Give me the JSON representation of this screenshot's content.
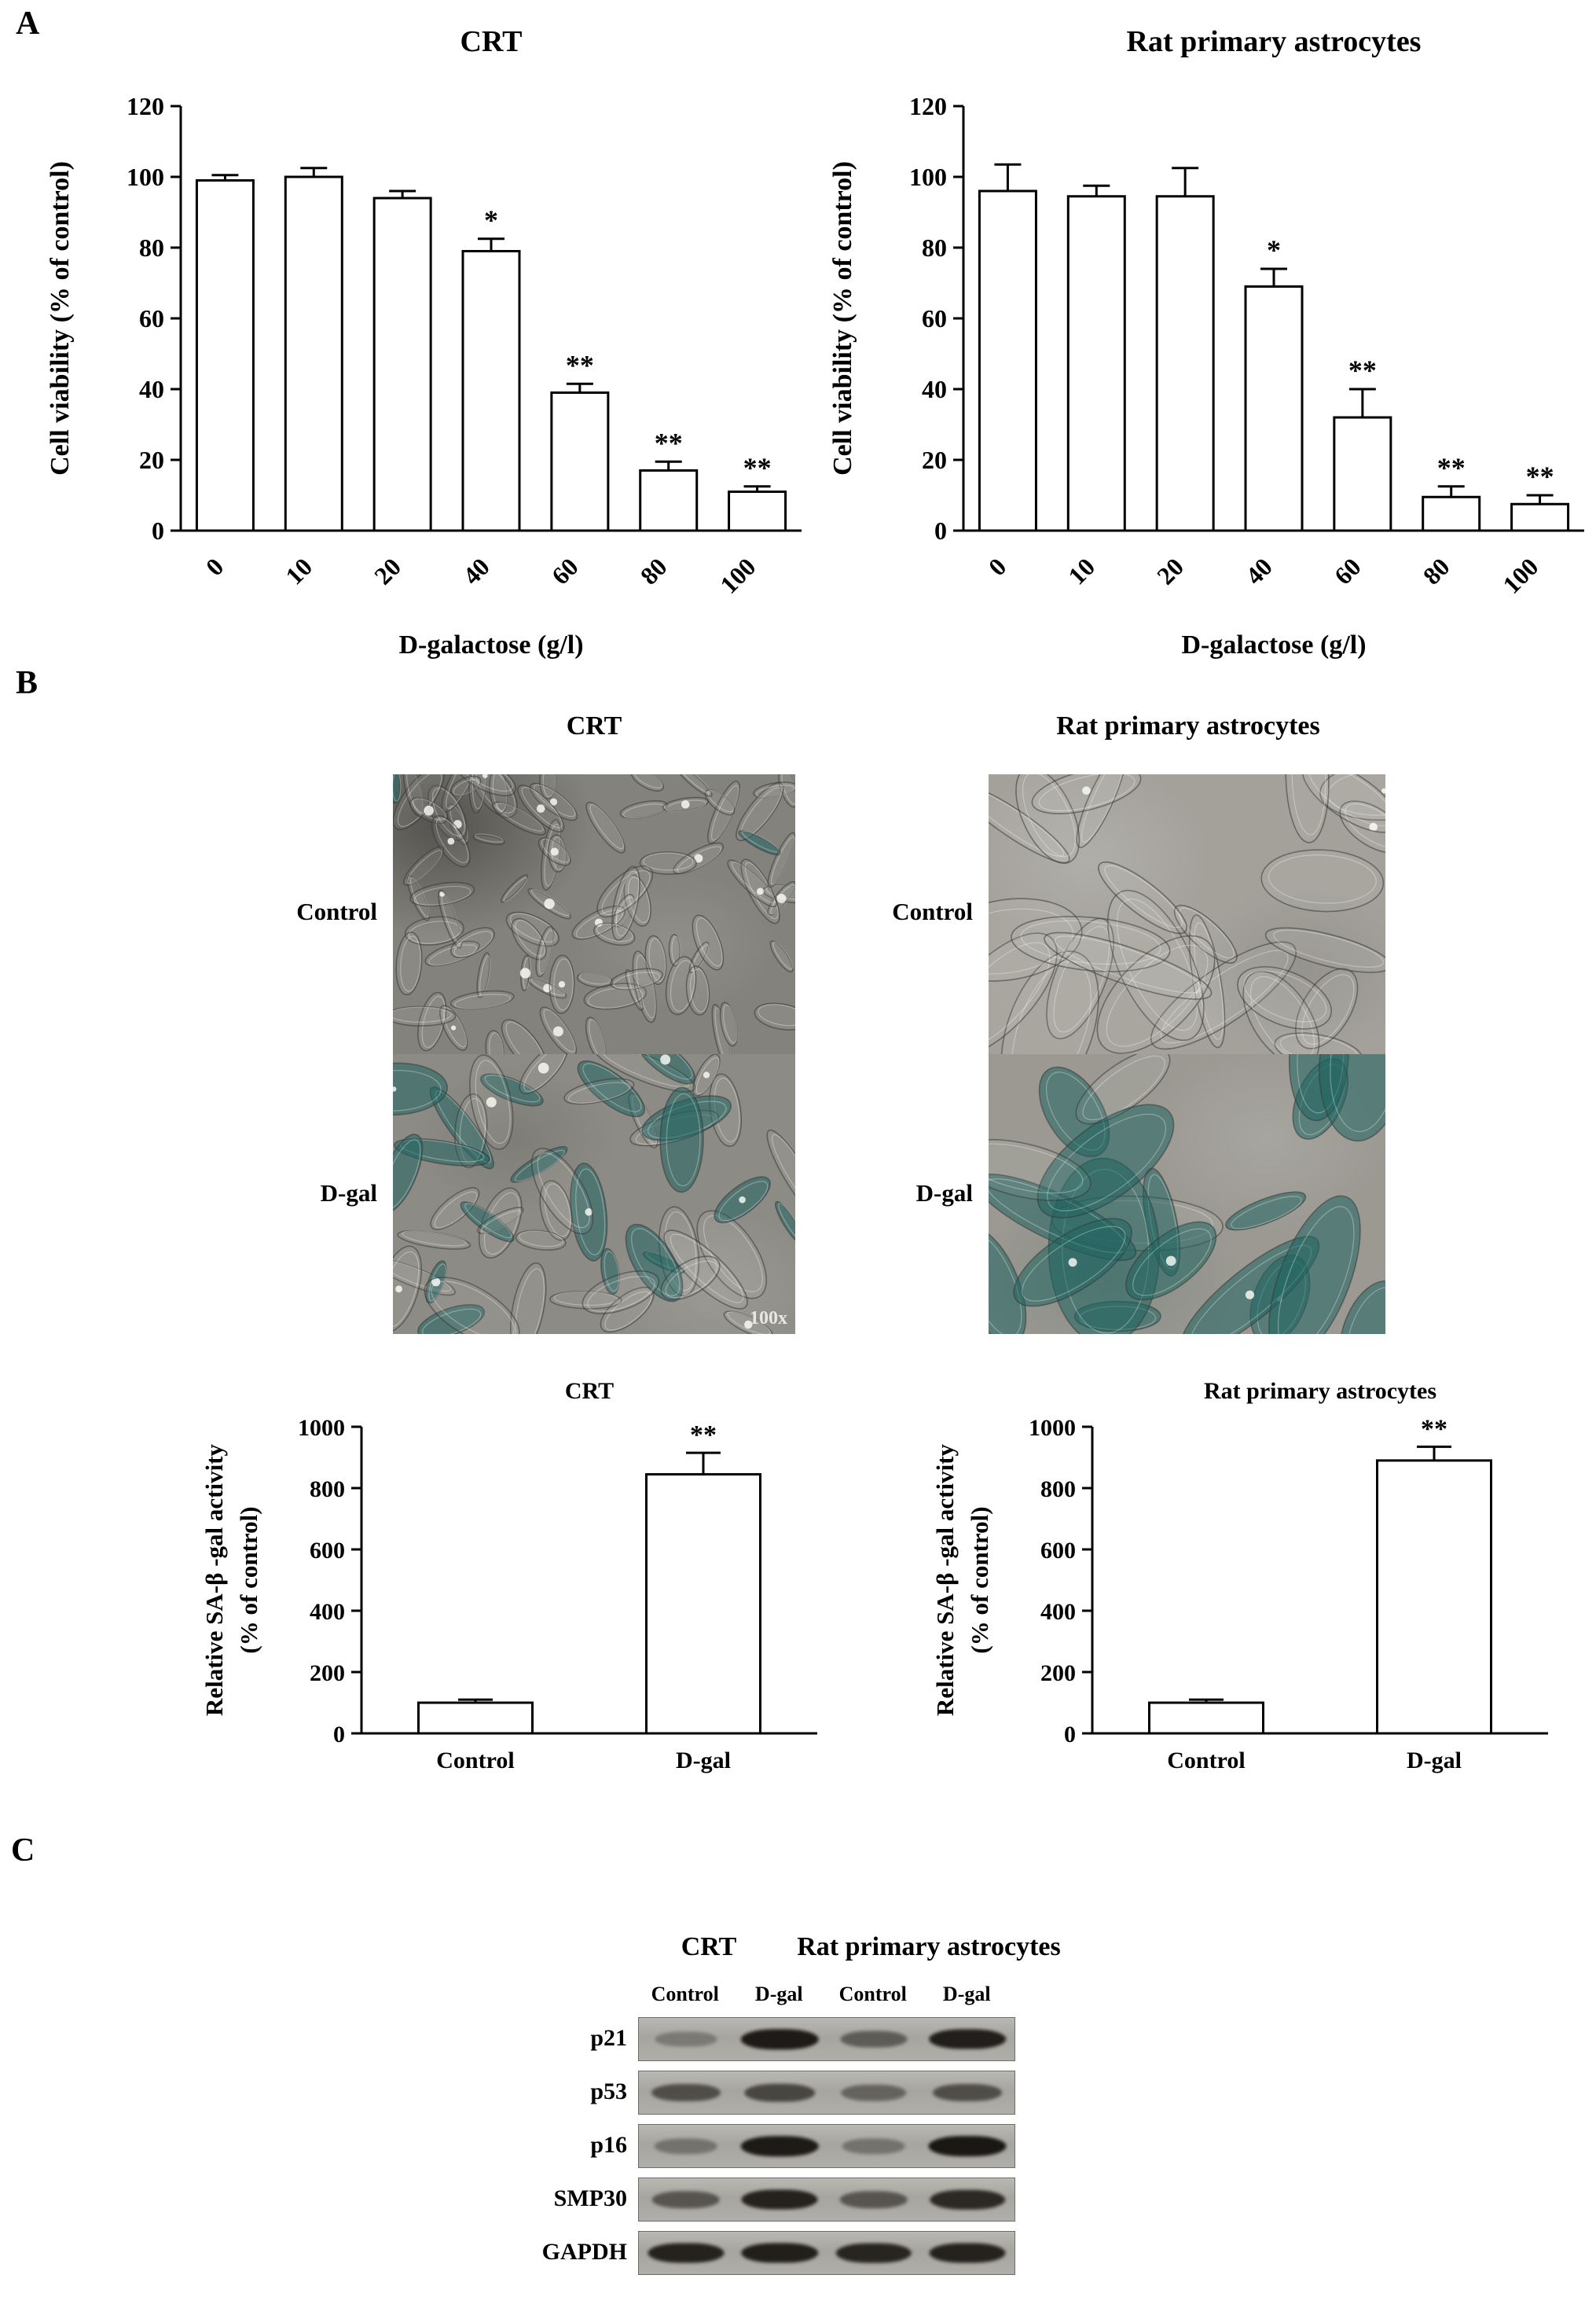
{
  "panel_a": {
    "label": "A"
  },
  "panel_b": {
    "label": "B",
    "column_headers": [
      "CRT",
      "Rat primary astrocytes"
    ],
    "image_rows": [
      "Control",
      "D-gal"
    ],
    "magnification": "100x"
  },
  "panel_c": {
    "label": "C",
    "group_headers": [
      "CRT",
      "Rat primary astrocytes"
    ],
    "lane_headers": [
      "Control",
      "D-gal",
      "Control",
      "D-gal"
    ],
    "proteins": [
      {
        "name": "p21",
        "bands": [
          0.3,
          0.95,
          0.5,
          0.92
        ]
      },
      {
        "name": "p53",
        "bands": [
          0.6,
          0.65,
          0.45,
          0.6
        ]
      },
      {
        "name": "p16",
        "bands": [
          0.35,
          0.95,
          0.35,
          0.97
        ]
      },
      {
        "name": "SMP30",
        "bands": [
          0.55,
          0.9,
          0.55,
          0.85
        ]
      },
      {
        "name": "GAPDH",
        "bands": [
          0.9,
          0.92,
          0.88,
          0.9
        ]
      }
    ]
  },
  "chart_data": [
    {
      "id": "crt_viability",
      "type": "bar",
      "title": "CRT",
      "xlabel": "D-galactose (g/l)",
      "ylabel": "Cell viability (% of control)",
      "categories": [
        "0",
        "10",
        "20",
        "40",
        "60",
        "80",
        "100"
      ],
      "values": [
        99,
        100,
        94,
        79,
        39,
        17,
        11
      ],
      "errors": [
        1.5,
        2.5,
        2,
        3.5,
        2.5,
        2.5,
        1.5
      ],
      "significance": [
        "",
        "",
        "",
        "*",
        "**",
        "**",
        "**"
      ],
      "ylim": [
        0,
        120
      ],
      "ytick_step": 20,
      "bar_fill": "#ffffff",
      "bar_stroke": "#000000",
      "grid": false,
      "legend": false
    },
    {
      "id": "astrocyte_viability",
      "type": "bar",
      "title": "Rat primary astrocytes",
      "xlabel": "D-galactose (g/l)",
      "ylabel": "Cell viability (% of control)",
      "categories": [
        "0",
        "10",
        "20",
        "40",
        "60",
        "80",
        "100"
      ],
      "values": [
        96,
        94.5,
        94.5,
        69,
        32,
        9.5,
        7.5
      ],
      "errors": [
        7.5,
        3,
        8,
        5,
        8,
        3,
        2.5
      ],
      "significance": [
        "",
        "",
        "",
        "*",
        "**",
        "**",
        "**"
      ],
      "ylim": [
        0,
        120
      ],
      "ytick_step": 20,
      "bar_fill": "#ffffff",
      "bar_stroke": "#000000",
      "grid": false,
      "legend": false
    },
    {
      "id": "crt_sabgal",
      "type": "bar",
      "title": "CRT",
      "ylabel_lines": [
        "Relative SA-β -gal activity",
        "(% of control)"
      ],
      "categories": [
        "Control",
        "D-gal"
      ],
      "values": [
        100,
        845
      ],
      "errors": [
        10,
        70
      ],
      "significance": [
        "",
        "**"
      ],
      "ylim": [
        0,
        1000
      ],
      "ytick_step": 200,
      "bar_fill": "#ffffff",
      "bar_stroke": "#000000",
      "grid": false,
      "legend": false
    },
    {
      "id": "astrocyte_sabgal",
      "type": "bar",
      "title": "Rat primary astrocytes",
      "ylabel_lines": [
        "Relative SA-β -gal activity",
        "(% of control)"
      ],
      "categories": [
        "Control",
        "D-gal"
      ],
      "values": [
        100,
        890
      ],
      "errors": [
        10,
        45
      ],
      "significance": [
        "",
        "**"
      ],
      "ylim": [
        0,
        1000
      ],
      "ytick_step": 200,
      "bar_fill": "#ffffff",
      "bar_stroke": "#000000",
      "grid": false,
      "legend": false
    }
  ]
}
